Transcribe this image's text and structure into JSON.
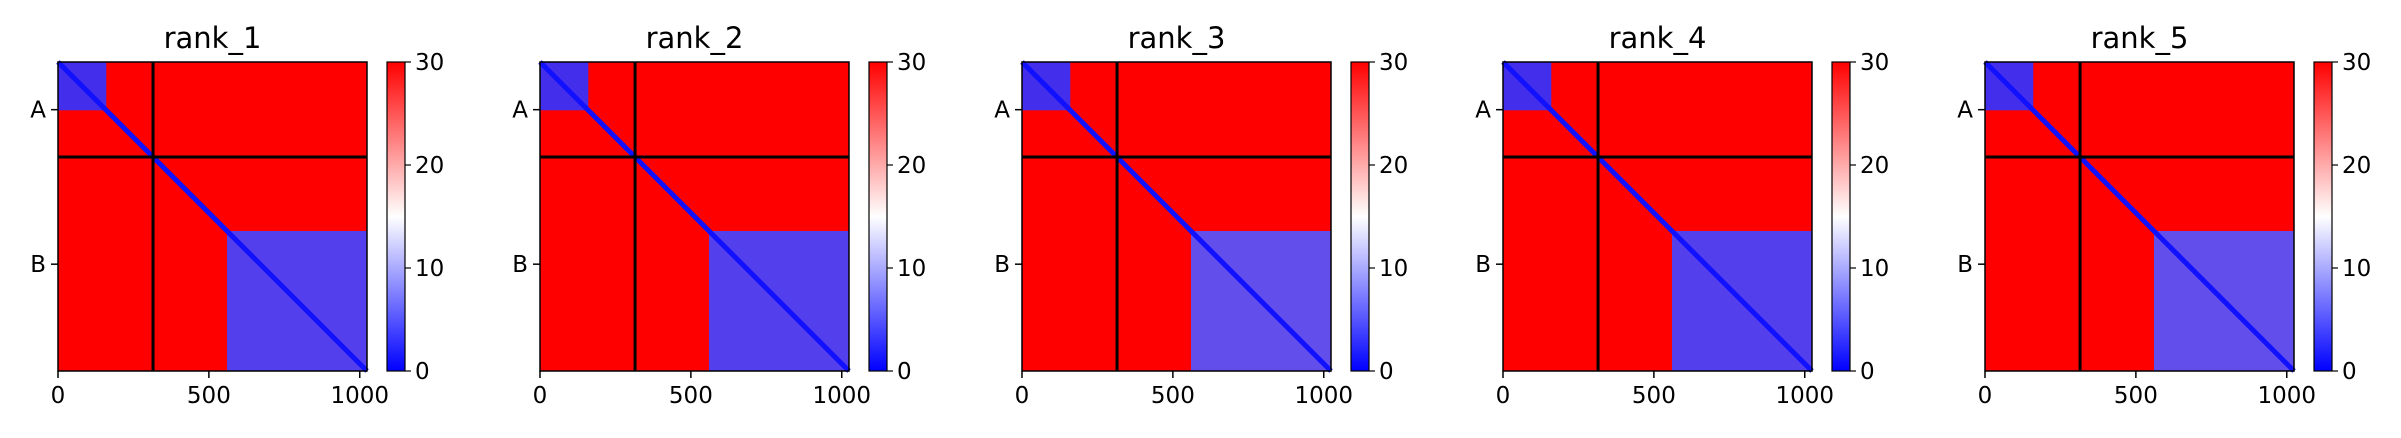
{
  "figure": {
    "colors": {
      "low": "#0000ff",
      "mid": "#ffffff",
      "high": "#ff0000",
      "divider": "#000000"
    },
    "colormap": "bwr"
  },
  "chart_data": [
    {
      "type": "heatmap",
      "title": "rank_1",
      "matrix_size": 1024,
      "chain_break": 315,
      "xticks": [
        0,
        500,
        1000
      ],
      "xtick_labels": [
        "0",
        "500",
        "1000"
      ],
      "yticks": [
        158,
        670
      ],
      "ytick_labels": [
        "A",
        "B"
      ],
      "colorbar": {
        "min": 0,
        "max": 30,
        "ticks": [
          "0",
          "10",
          "20",
          "30"
        ]
      },
      "blocks": [
        {
          "range": [
            0,
            160
          ],
          "value": 3
        },
        {
          "range": [
            560,
            1024
          ],
          "value": 4
        }
      ],
      "diagonal_value": 1
    },
    {
      "type": "heatmap",
      "title": "rank_2",
      "matrix_size": 1024,
      "chain_break": 315,
      "xticks": [
        0,
        500,
        1000
      ],
      "xtick_labels": [
        "0",
        "500",
        "1000"
      ],
      "yticks": [
        158,
        670
      ],
      "ytick_labels": [
        "A",
        "B"
      ],
      "colorbar": {
        "min": 0,
        "max": 30,
        "ticks": [
          "0",
          "10",
          "20",
          "30"
        ]
      },
      "blocks": [
        {
          "range": [
            0,
            160
          ],
          "value": 3
        },
        {
          "range": [
            560,
            1024
          ],
          "value": 4
        }
      ],
      "diagonal_value": 1
    },
    {
      "type": "heatmap",
      "title": "rank_3",
      "matrix_size": 1024,
      "chain_break": 315,
      "xticks": [
        0,
        500,
        1000
      ],
      "xtick_labels": [
        "0",
        "500",
        "1000"
      ],
      "yticks": [
        158,
        670
      ],
      "ytick_labels": [
        "A",
        "B"
      ],
      "colorbar": {
        "min": 0,
        "max": 30,
        "ticks": [
          "0",
          "10",
          "20",
          "30"
        ]
      },
      "blocks": [
        {
          "range": [
            0,
            160
          ],
          "value": 3
        },
        {
          "range": [
            560,
            1024
          ],
          "value": 5
        }
      ],
      "diagonal_value": 1
    },
    {
      "type": "heatmap",
      "title": "rank_4",
      "matrix_size": 1024,
      "chain_break": 315,
      "xticks": [
        0,
        500,
        1000
      ],
      "xtick_labels": [
        "0",
        "500",
        "1000"
      ],
      "yticks": [
        158,
        670
      ],
      "ytick_labels": [
        "A",
        "B"
      ],
      "colorbar": {
        "min": 0,
        "max": 30,
        "ticks": [
          "0",
          "10",
          "20",
          "30"
        ]
      },
      "blocks": [
        {
          "range": [
            0,
            160
          ],
          "value": 3
        },
        {
          "range": [
            560,
            1024
          ],
          "value": 4
        }
      ],
      "diagonal_value": 1
    },
    {
      "type": "heatmap",
      "title": "rank_5",
      "matrix_size": 1024,
      "chain_break": 315,
      "xticks": [
        0,
        500,
        1000
      ],
      "xtick_labels": [
        "0",
        "500",
        "1000"
      ],
      "yticks": [
        158,
        670
      ],
      "ytick_labels": [
        "A",
        "B"
      ],
      "colorbar": {
        "min": 0,
        "max": 30,
        "ticks": [
          "0",
          "10",
          "20",
          "30"
        ]
      },
      "blocks": [
        {
          "range": [
            0,
            160
          ],
          "value": 3
        },
        {
          "range": [
            560,
            1024
          ],
          "value": 5
        }
      ],
      "diagonal_value": 1
    }
  ]
}
